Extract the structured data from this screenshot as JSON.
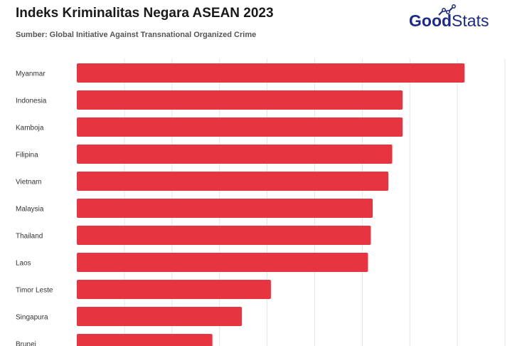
{
  "header": {
    "title": "Indeks Kriminalitas Negara ASEAN 2023",
    "subtitle": "Sumber: Global Initiative Against Transnational Organized Crime"
  },
  "logo": {
    "part1": "Good",
    "part2": "Stats",
    "color": "#1c2a8a"
  },
  "colors": {
    "bar": "#e63541",
    "grid": "#e6e6e6",
    "label": "#333333"
  },
  "chart_data": {
    "type": "bar",
    "orientation": "horizontal",
    "title": "Indeks Kriminalitas Negara ASEAN 2023",
    "xlabel": "",
    "ylabel": "",
    "grid": true,
    "xlim": [
      0,
      9
    ],
    "categories": [
      "Myanmar",
      "Indonesia",
      "Kamboja",
      "Filipina",
      "Vietnam",
      "Malaysia",
      "Thailand",
      "Laos",
      "Timor Leste",
      "Singapura",
      "Brunei"
    ],
    "values": [
      8.15,
      6.85,
      6.85,
      6.63,
      6.55,
      6.22,
      6.18,
      6.12,
      4.08,
      3.47,
      2.85
    ]
  }
}
